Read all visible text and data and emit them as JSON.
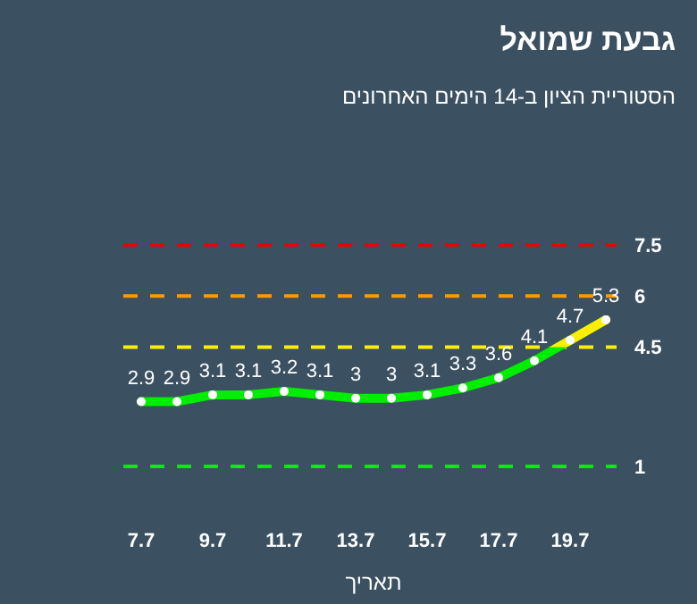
{
  "chart_data": {
    "type": "line",
    "title": "גבעת שמואל",
    "subtitle": "הסטוריית הציון ב-14 הימים האחרונים",
    "xlabel": "תאריך",
    "categories": [
      "7.7",
      null,
      "9.7",
      null,
      "11.7",
      null,
      "13.7",
      null,
      "15.7",
      null,
      "17.7",
      null,
      "19.7",
      null
    ],
    "series": [
      {
        "color": "#00ee00",
        "values": [
          2.9,
          2.9,
          3.1,
          3.1,
          3.2,
          3.1,
          3,
          3,
          3.1,
          3.3,
          3.6,
          4.1,
          4.7,
          5.3
        ]
      }
    ],
    "ref_lines": [
      {
        "axis": "y",
        "value": 7.5,
        "label": "7.5",
        "color": "#ee0000",
        "line_style": "dashed"
      },
      {
        "axis": "y",
        "value": 6,
        "label": "6",
        "color": "#ff9900",
        "line_style": "dashed"
      },
      {
        "axis": "y",
        "value": 4.5,
        "label": "4.5",
        "color": "#ffee00",
        "line_style": "dashed"
      },
      {
        "axis": "y",
        "value": 1,
        "label": "1",
        "color": "#00ee00",
        "line_style": "dashed"
      }
    ],
    "data_labels": true,
    "marker": "circle"
  }
}
